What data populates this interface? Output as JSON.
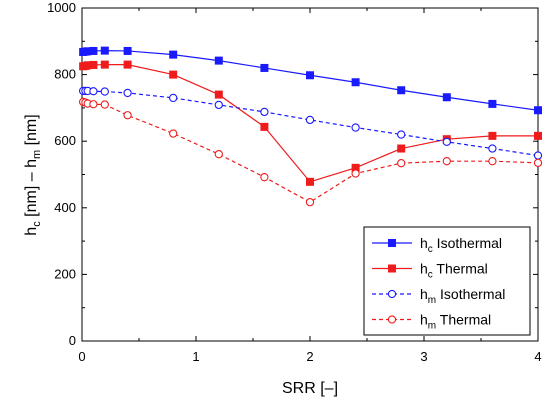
{
  "chart_data": {
    "type": "line",
    "xlabel": {
      "main": "SRR",
      "unit": "[–]"
    },
    "ylabel": {
      "h": "h",
      "c": "c",
      "bracket1": " [nm] – h",
      "m": "m",
      "bracket2": " [nm]"
    },
    "xlim": [
      0,
      4
    ],
    "ylim": [
      0,
      1000
    ],
    "xticks": [
      "0",
      "1",
      "2",
      "3",
      "4"
    ],
    "yticks": [
      "0",
      "200",
      "400",
      "600",
      "800",
      "1000"
    ],
    "grid": false,
    "legend_position": "bottom-right",
    "series": [
      {
        "name": "h_c Isothermal",
        "legend": {
          "main": "h",
          "sub": "c",
          "rest": " Isothermal"
        },
        "color": "#1a1aff",
        "line": "solid",
        "marker": "filled-square",
        "x": [
          0.01,
          0.03,
          0.05,
          0.1,
          0.2,
          0.4,
          0.8,
          1.2,
          1.6,
          2.0,
          2.4,
          2.8,
          3.2,
          3.6,
          4.0
        ],
        "y": [
          868,
          869,
          870,
          871,
          872,
          871,
          860,
          842,
          820,
          798,
          777,
          753,
          732,
          712,
          693
        ]
      },
      {
        "name": "h_c Thermal",
        "legend": {
          "main": "h",
          "sub": "c",
          "rest": " Thermal"
        },
        "color": "#ee1c1c",
        "line": "solid",
        "marker": "filled-square",
        "x": [
          0.01,
          0.03,
          0.05,
          0.1,
          0.2,
          0.4,
          0.8,
          1.2,
          1.6,
          2.0,
          2.4,
          2.8,
          3.2,
          3.6,
          4.0
        ],
        "y": [
          825,
          826,
          828,
          829,
          830,
          830,
          800,
          740,
          643,
          478,
          520,
          578,
          606,
          616,
          616
        ]
      },
      {
        "name": "h_m Isothermal",
        "legend": {
          "main": "h",
          "sub": "m",
          "rest": " Isothermal"
        },
        "color": "#1a1aff",
        "line": "dashed",
        "marker": "open-circle",
        "x": [
          0.01,
          0.03,
          0.05,
          0.1,
          0.2,
          0.4,
          0.8,
          1.2,
          1.6,
          2.0,
          2.4,
          2.8,
          3.2,
          3.6,
          4.0
        ],
        "y": [
          751,
          751,
          751,
          750,
          749,
          745,
          730,
          709,
          688,
          664,
          641,
          620,
          598,
          578,
          557
        ]
      },
      {
        "name": "h_m Thermal",
        "legend": {
          "main": "h",
          "sub": "m",
          "rest": " Thermal"
        },
        "color": "#ee1c1c",
        "line": "dashed",
        "marker": "open-circle",
        "x": [
          0.01,
          0.03,
          0.05,
          0.1,
          0.2,
          0.4,
          0.8,
          1.2,
          1.6,
          2.0,
          2.4,
          2.8,
          3.2,
          3.6,
          4.0
        ],
        "y": [
          718,
          716,
          713,
          711,
          710,
          678,
          623,
          561,
          492,
          417,
          503,
          534,
          540,
          540,
          535
        ]
      }
    ]
  }
}
